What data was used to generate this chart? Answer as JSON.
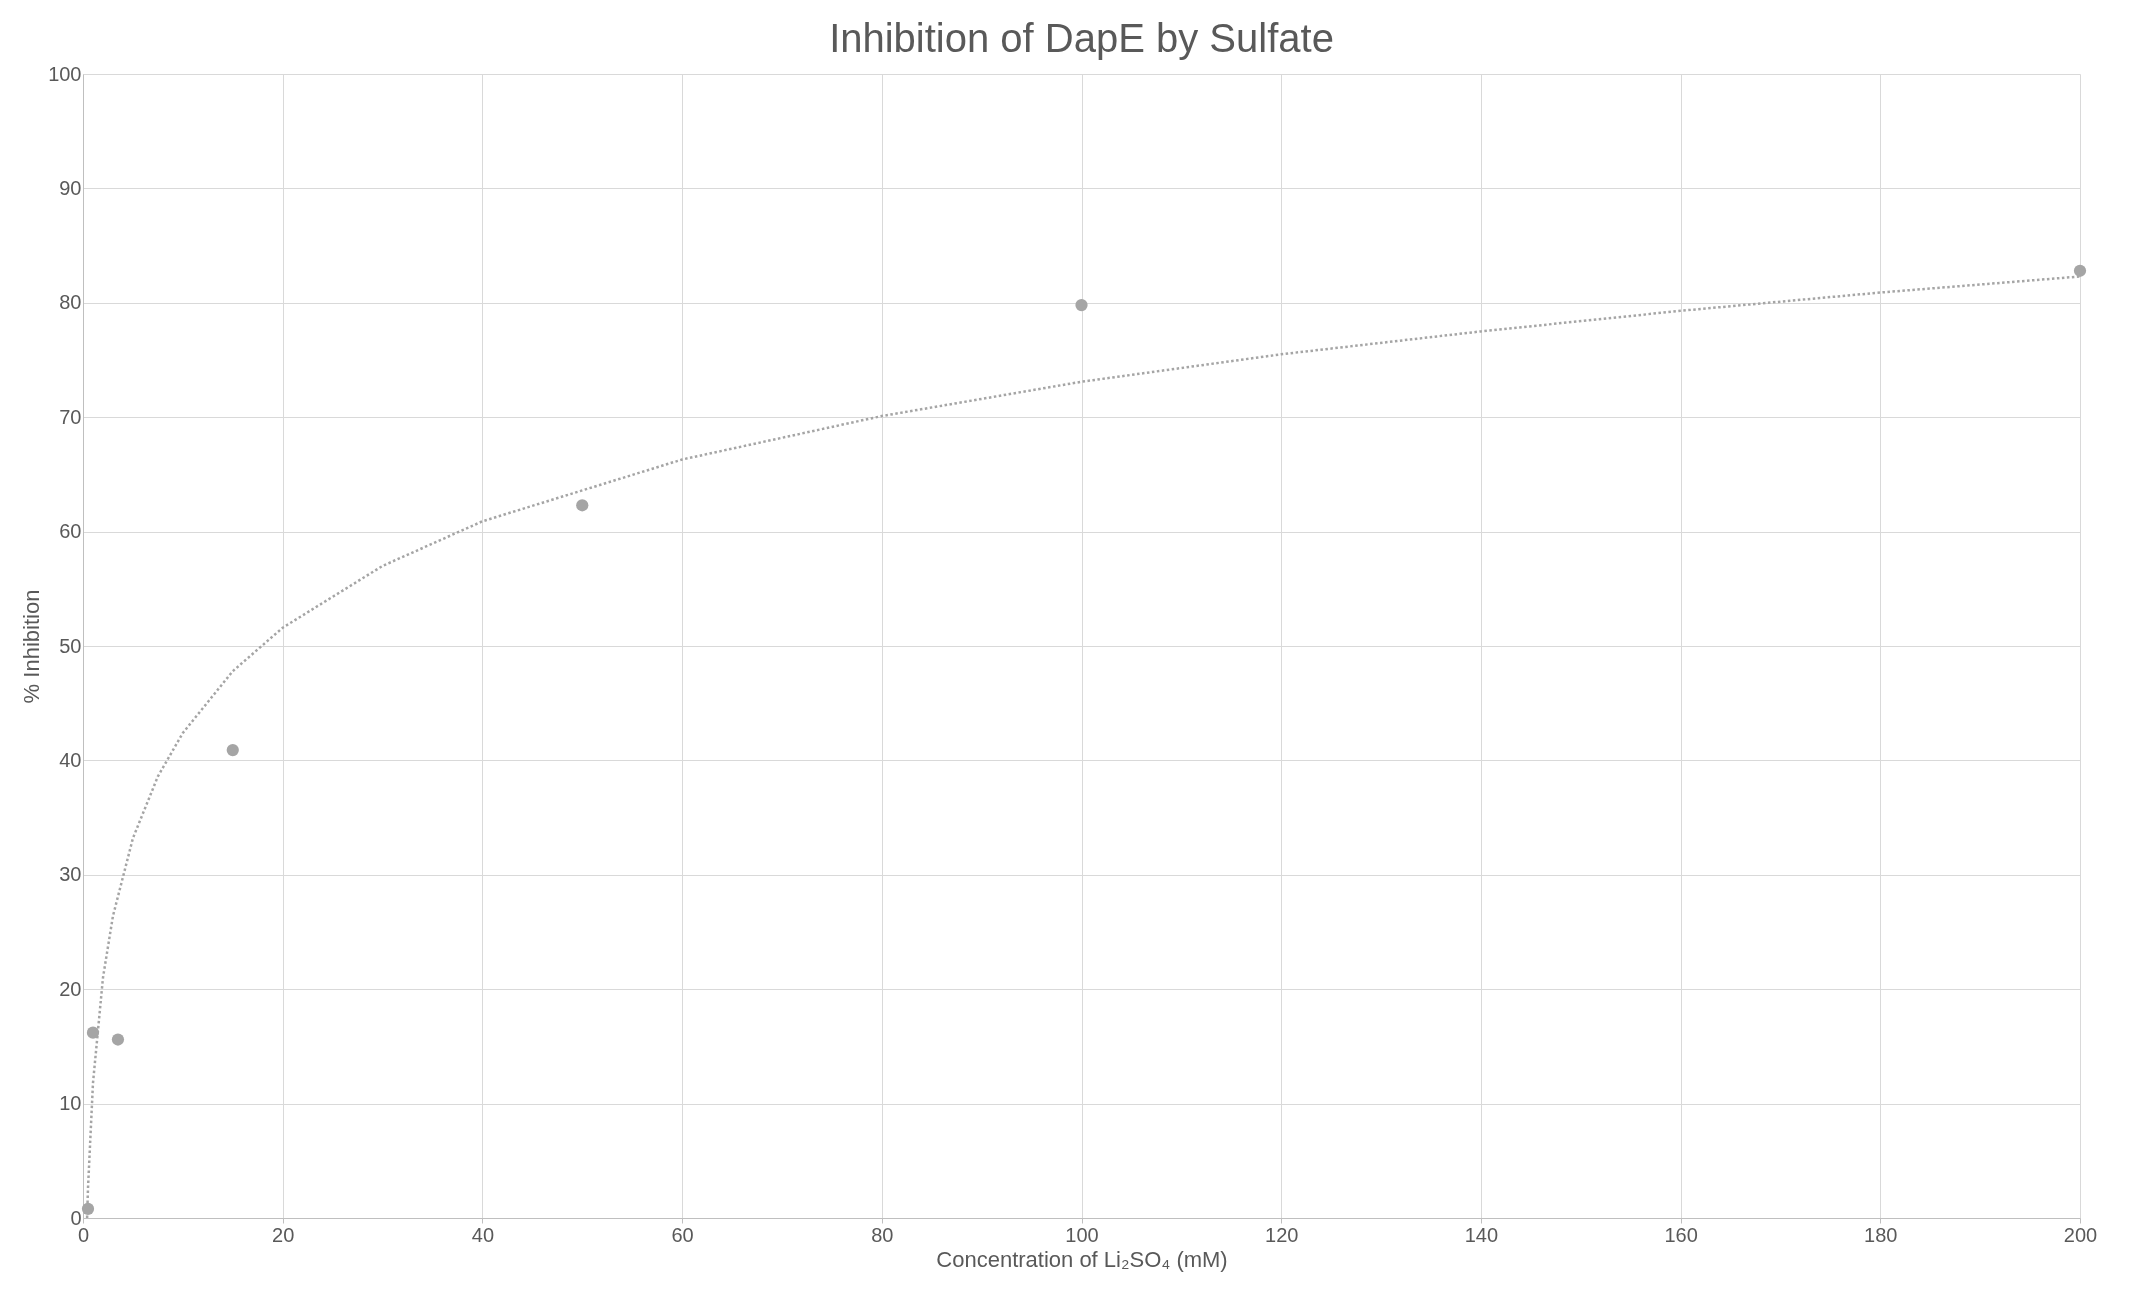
{
  "chart_data": {
    "type": "scatter",
    "title": "Inhibition of DapE by Sulfate",
    "xlabel": "Concentration of Li₂SO₄ (mM)",
    "ylabel": "% Inhibition",
    "xlim": [
      0,
      200
    ],
    "xticks": [
      0,
      20,
      40,
      60,
      80,
      100,
      120,
      140,
      160,
      180,
      200
    ],
    "ylim": [
      0,
      100
    ],
    "yticks": [
      0,
      10,
      20,
      30,
      40,
      50,
      60,
      70,
      80,
      90,
      100
    ],
    "grid": true,
    "series": [
      {
        "marker": "circle",
        "color": "#a5a5a5",
        "x": [
          0.5,
          1,
          3.5,
          15,
          50,
          100,
          200
        ],
        "values": [
          0.8,
          16.2,
          15.6,
          40.9,
          62.3,
          79.8,
          82.8
        ]
      },
      {
        "type": "line",
        "marker": "none",
        "color": "#a5a5a5",
        "line_style": "dotted",
        "x": [
          0.41,
          0.5,
          1,
          2,
          3,
          5,
          7.5,
          10,
          15,
          20,
          30,
          40,
          60,
          80,
          100,
          120,
          140,
          160,
          180,
          200
        ],
        "values": [
          0,
          2.6,
          11.8,
          21.0,
          26.4,
          33.2,
          38.6,
          42.4,
          47.8,
          51.6,
          57.0,
          60.9,
          66.3,
          70.1,
          73.1,
          75.5,
          77.5,
          79.3,
          80.9,
          82.3
        ]
      }
    ]
  }
}
